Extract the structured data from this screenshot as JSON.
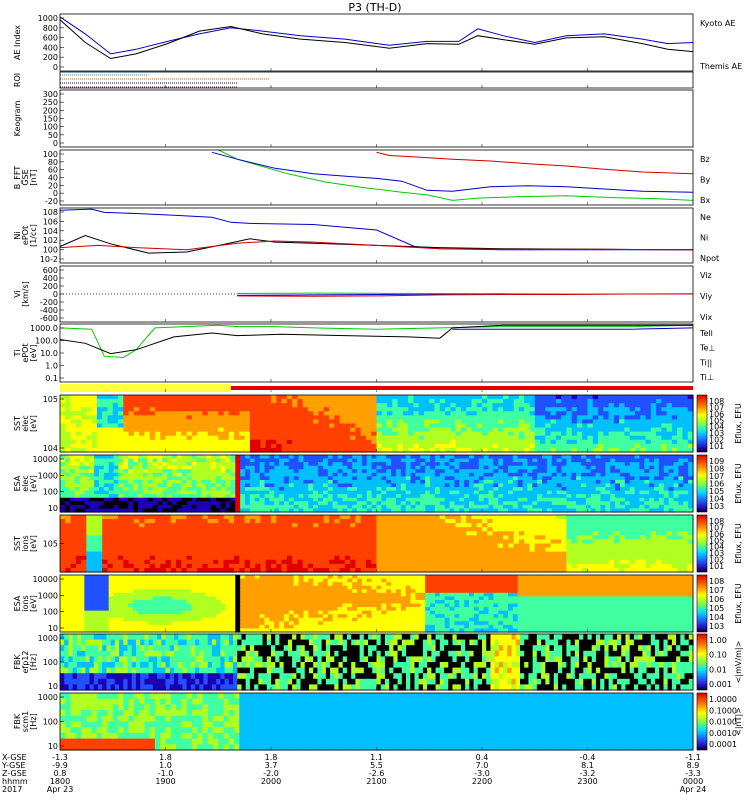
{
  "title": "P3 (TH-D)",
  "colors": {
    "blue": "#0000cc",
    "red": "#cc0000",
    "green": "#00cc00",
    "black": "#000000"
  },
  "chart_data": {
    "type": "line",
    "title": "P3 (TH-D)",
    "time_axis": {
      "start": "2017-04-23 18:00",
      "end": "2017-04-24 00:00",
      "rows": [
        {
          "name": "X-GSE",
          "values": [
            "-1.3",
            "1.8",
            "1.8",
            "1.1",
            "0.4",
            "-0.4",
            "-1.1"
          ]
        },
        {
          "name": "Y-GSE",
          "values": [
            "-9.9",
            "1.0",
            "3.7",
            "5.5",
            "7.0",
            "8.1",
            "8.9"
          ]
        },
        {
          "name": "Z-GSE",
          "values": [
            "0.8",
            "-1.0",
            "-2.0",
            "-2.6",
            "-3.0",
            "-3.2",
            "-3.3"
          ]
        },
        {
          "name": "hhmm",
          "values": [
            "1800",
            "1900",
            "2000",
            "2100",
            "2200",
            "2300",
            "0000"
          ]
        },
        {
          "name": "2017",
          "values": [
            "Apr 23",
            "",
            "",
            "",
            "",
            "",
            "Apr 24"
          ]
        }
      ]
    },
    "panels": [
      {
        "id": "ae",
        "ylabel": "AE Index",
        "yticks": [
          "1000",
          "800",
          "600",
          "400",
          "200",
          "0"
        ],
        "ylim": [
          0,
          1000
        ],
        "legend": [
          {
            "text": "Kyoto AE",
            "color": "#0000cc"
          },
          {
            "text": "Themis AE",
            "color": "#000000"
          }
        ],
        "series": [
          {
            "name": "Kyoto AE",
            "color": "#0000cc",
            "t": [
              0,
              0.04,
              0.08,
              0.12,
              0.17,
              0.22,
              0.27,
              0.32,
              0.38,
              0.45,
              0.52,
              0.58,
              0.63,
              0.66,
              0.7,
              0.75,
              0.8,
              0.86,
              0.92,
              0.96,
              1.0
            ],
            "y": [
              950,
              650,
              300,
              380,
              520,
              650,
              760,
              700,
              620,
              560,
              450,
              520,
              520,
              740,
              620,
              500,
              620,
              650,
              560,
              480,
              500
            ]
          },
          {
            "name": "Themis AE",
            "color": "#000000",
            "t": [
              0,
              0.04,
              0.08,
              0.12,
              0.17,
              0.22,
              0.27,
              0.32,
              0.38,
              0.45,
              0.52,
              0.58,
              0.63,
              0.66,
              0.7,
              0.75,
              0.8,
              0.86,
              0.92,
              0.96,
              1.0
            ],
            "y": [
              900,
              500,
              220,
              300,
              480,
              700,
              780,
              650,
              560,
              500,
              400,
              480,
              470,
              620,
              550,
              470,
              580,
              600,
              480,
              380,
              340
            ]
          }
        ]
      },
      {
        "id": "roi",
        "ylabel": "ROI",
        "lines": [
          {
            "color": "#00aacc",
            "t0": 0.0,
            "t1": 0.14
          },
          {
            "color": "#cc6600",
            "t0": 0.0,
            "t1": 0.33
          },
          {
            "color": "#000000",
            "t0": 0.0,
            "t1": 0.28
          },
          {
            "color": "#880088",
            "t0": 0.0,
            "t1": 0.28
          }
        ]
      },
      {
        "id": "keogram",
        "ylabel": "Keogram",
        "yticks": [
          "300",
          "250",
          "200",
          "150",
          "100",
          "50",
          "0"
        ],
        "ylim": [
          0,
          300
        ]
      },
      {
        "id": "bfft",
        "ylabel": "B_FFT",
        "ylabel2": "GSE",
        "ylabel3": "[nT]",
        "yticks": [
          "100",
          "80",
          "60",
          "40",
          "20",
          "0",
          "-20"
        ],
        "ylim": [
          -20,
          100
        ],
        "legend": [
          {
            "text": "Bz",
            "color": "#cc0000"
          },
          {
            "text": "By",
            "color": "#00cc00"
          },
          {
            "text": "Bx",
            "color": "#0000cc"
          }
        ],
        "series": [
          {
            "name": "Bz",
            "color": "#cc0000",
            "t": [
              0.5,
              0.52,
              0.56,
              0.62,
              0.68,
              0.74,
              0.8,
              0.86,
              0.92,
              1.0
            ],
            "y": [
              95,
              88,
              85,
              80,
              76,
              70,
              65,
              58,
              52,
              48
            ]
          },
          {
            "name": "By",
            "color": "#00cc00",
            "t": [
              0.25,
              0.28,
              0.32,
              0.36,
              0.42,
              0.48,
              0.54,
              0.58,
              0.62,
              0.66,
              0.72,
              0.8,
              0.88,
              0.94,
              1.0
            ],
            "y": [
              100,
              80,
              64,
              48,
              30,
              18,
              8,
              2,
              -10,
              -5,
              -2,
              0,
              -4,
              -6,
              -10
            ]
          },
          {
            "name": "Bx",
            "color": "#0000cc",
            "t": [
              0.24,
              0.28,
              0.34,
              0.4,
              0.46,
              0.5,
              0.54,
              0.58,
              0.62,
              0.68,
              0.74,
              0.8,
              0.86,
              0.92,
              1.0
            ],
            "y": [
              95,
              80,
              60,
              48,
              42,
              38,
              32,
              12,
              10,
              20,
              22,
              20,
              15,
              10,
              8
            ]
          }
        ]
      },
      {
        "id": "ni",
        "ylabel": "Ni",
        "ylabel2": "ePOt",
        "ylabel3": "[1/cc]",
        "yticks": [
          "10^8",
          "10^6",
          "10^4",
          "10^2",
          "10^0",
          "10^-2"
        ],
        "ylim": [
          -2,
          8
        ],
        "legend": [
          {
            "text": "Ne",
            "color": "#cc0000"
          },
          {
            "text": "Ni",
            "color": "#000000"
          },
          {
            "text": "Npot",
            "color": "#0000cc"
          }
        ],
        "series": [
          {
            "name": "Npot",
            "color": "#0000cc",
            "t": [
              0.0,
              0.05,
              0.07,
              0.12,
              0.18,
              0.24,
              0.27,
              0.3,
              0.4,
              0.5,
              0.56,
              0.6,
              0.7,
              0.85,
              1.0
            ],
            "y": [
              7.6,
              7.8,
              7.2,
              7.0,
              6.7,
              6.3,
              5.4,
              5.2,
              5.0,
              4.0,
              1.0,
              0.6,
              0.4,
              0.4,
              0.4
            ]
          },
          {
            "name": "Ni",
            "color": "#000000",
            "t": [
              0.0,
              0.04,
              0.08,
              0.14,
              0.2,
              0.26,
              0.3,
              0.34,
              0.4,
              0.5,
              0.6,
              0.7,
              0.85,
              1.0
            ],
            "y": [
              1.0,
              3.0,
              1.5,
              -0.2,
              0.0,
              1.4,
              2.4,
              1.8,
              1.6,
              1.2,
              0.8,
              0.6,
              0.5,
              0.4
            ]
          },
          {
            "name": "Ne",
            "color": "#cc0000",
            "t": [
              0.0,
              0.06,
              0.12,
              0.2,
              0.28,
              0.34,
              0.4,
              0.5,
              0.6,
              0.7,
              0.85,
              1.0
            ],
            "y": [
              0.8,
              1.2,
              0.8,
              0.4,
              1.6,
              2.0,
              1.8,
              1.2,
              0.6,
              0.5,
              0.5,
              0.4
            ]
          }
        ]
      },
      {
        "id": "vi",
        "ylabel": "Vi",
        "ylabel3": "[km/s]",
        "yticks": [
          "600",
          "400",
          "200",
          "0",
          "-200",
          "-400",
          "-600"
        ],
        "ylim": [
          -600,
          600
        ],
        "legend": [
          {
            "text": "Viz",
            "color": "#cc0000"
          },
          {
            "text": "Viy",
            "color": "#00cc00"
          },
          {
            "text": "Vix",
            "color": "#0000cc"
          }
        ],
        "series": [
          {
            "name": "Vix",
            "color": "#0000cc",
            "t": [
              0.28,
              0.4,
              0.5,
              0.6,
              0.7,
              0.8,
              0.9,
              1.0
            ],
            "y": [
              -30,
              -20,
              -10,
              0,
              5,
              0,
              0,
              0
            ]
          },
          {
            "name": "Viy",
            "color": "#00cc00",
            "t": [
              0.28,
              0.4,
              0.5,
              0.6,
              0.7,
              0.8,
              0.9,
              1.0
            ],
            "y": [
              10,
              20,
              15,
              10,
              5,
              0,
              0,
              5
            ]
          },
          {
            "name": "Viz",
            "color": "#cc0000",
            "t": [
              0.28,
              0.4,
              0.5,
              0.6,
              0.7,
              0.8,
              0.9,
              1.0
            ],
            "y": [
              -40,
              -50,
              -40,
              -20,
              -10,
              -10,
              0,
              0
            ]
          }
        ]
      },
      {
        "id": "ti",
        "ylabel": "Ti",
        "ylabel2": "ePOt",
        "ylabel3": "[eV]",
        "yticks": [
          "1000.0",
          "100.0",
          "10.0",
          "1.0",
          "0.1"
        ],
        "ylim": [
          -1,
          3.5
        ],
        "legend": [
          {
            "text": "Tell",
            "color": "#000000"
          },
          {
            "text": "Te⊥",
            "color": "#cc0000"
          },
          {
            "text": "Ti||",
            "color": "#00cc00"
          },
          {
            "text": "Ti⊥",
            "color": "#0000cc"
          }
        ],
        "series": [
          {
            "name": "Ti||",
            "color": "#00cc00",
            "t": [
              0.0,
              0.05,
              0.07,
              0.1,
              0.12,
              0.15,
              0.25,
              0.28,
              0.34,
              0.4,
              0.5,
              0.6,
              0.7,
              0.8,
              0.9,
              1.0
            ],
            "y": [
              3.2,
              3.1,
              1.0,
              0.9,
              1.5,
              3.2,
              3.4,
              3.3,
              3.3,
              3.2,
              3.1,
              3.2,
              3.3,
              3.3,
              3.3,
              3.4
            ]
          },
          {
            "name": "Tell",
            "color": "#000000",
            "t": [
              0.0,
              0.04,
              0.08,
              0.12,
              0.18,
              0.24,
              0.28,
              0.35,
              0.45,
              0.55,
              0.6,
              0.62,
              0.7,
              0.8,
              0.9,
              1.0
            ],
            "y": [
              2.3,
              2.0,
              1.2,
              1.5,
              2.5,
              2.8,
              2.6,
              2.7,
              2.6,
              2.5,
              2.4,
              3.2,
              3.4,
              3.4,
              3.4,
              3.4
            ]
          },
          {
            "name": "Ti⊥",
            "color": "#0000cc",
            "t": [
              0.62,
              0.7,
              0.8,
              0.9,
              1.0
            ],
            "y": [
              3.1,
              3.1,
              3.1,
              3.1,
              3.2
            ]
          }
        ]
      },
      {
        "id": "sst_eflux",
        "ylabel": "SST",
        "ylabel2": "elec",
        "ylabel3": "[eV]",
        "yticks": [
          "10^5",
          "10^4"
        ],
        "colorbar": [
          "10^8",
          "10^7",
          "10^6",
          "10^5",
          "10^4",
          "10^3",
          "10^2",
          "10^1"
        ],
        "cblabel": "Eflux, EFU"
      },
      {
        "id": "esa_eflux",
        "ylabel": "ESA",
        "ylabel2": "elec",
        "ylabel3": "[eV]",
        "yticks": [
          "10000",
          "1000",
          "100",
          "10"
        ],
        "colorbar": [
          "10^9",
          "10^8",
          "10^7",
          "10^6",
          "10^5",
          "10^4",
          "10^3"
        ],
        "cblabel": "Eflux, EFU"
      },
      {
        "id": "sst_ion",
        "ylabel": "SST",
        "ylabel2": "ions",
        "ylabel3": "[eV]",
        "yticks": [
          "10^5"
        ],
        "colorbar": [
          "10^8",
          "10^7",
          "10^6",
          "10^5",
          "10^4",
          "10^3",
          "10^2",
          "10^1"
        ],
        "cblabel": "Eflux, EFU"
      },
      {
        "id": "esa_ion",
        "ylabel": "ESA",
        "ylabel2": "ions",
        "ylabel3": "[eV]",
        "yticks": [
          "10000",
          "1000",
          "100",
          "10"
        ],
        "colorbar": [
          "10^8",
          "10^7",
          "10^6",
          "10^5",
          "10^4",
          "10^3"
        ],
        "cblabel": "Eflux, EFU"
      },
      {
        "id": "fbk_e",
        "ylabel": "FBK",
        "ylabel2": "efp12",
        "ylabel3": "[Hz]",
        "yticks": [
          "1000",
          "100",
          "10"
        ],
        "colorbar": [
          "1.00",
          "0.10",
          "0.01",
          "0.001"
        ],
        "cblabel": "<|mV/m|>"
      },
      {
        "id": "fbk_b",
        "ylabel": "FBK",
        "ylabel2": "scm1",
        "ylabel3": "[Hz]",
        "yticks": [
          "1000",
          "100",
          "10"
        ],
        "colorbar": [
          "1.0000",
          "0.1000",
          "0.0100",
          "0.0010",
          "0.0001"
        ],
        "cblabel": "<|nT|>"
      }
    ]
  }
}
